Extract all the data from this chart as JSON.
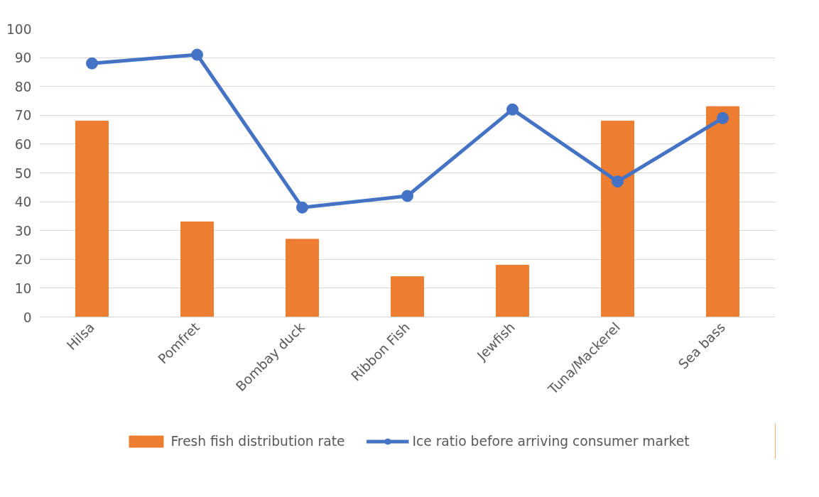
{
  "chart_data": {
    "type": "bar",
    "categories": [
      "Hilsa",
      "Pomfret",
      "Bombay duck",
      "Ribbon Fish",
      "Jewfish",
      "Tuna/Mackerel",
      "Sea bass"
    ],
    "series": [
      {
        "name": "Fresh fish distribution rate",
        "color": "#ed7d31",
        "values": [
          68,
          33,
          27,
          14,
          18,
          68,
          73
        ]
      },
      {
        "name": "Ice ratio before arriving consumer market",
        "type": "line",
        "color": "#4472c4",
        "values": [
          88,
          91,
          38,
          42,
          72,
          47,
          69
        ]
      }
    ],
    "ylim": [
      0,
      100
    ],
    "yticks": [
      0,
      10,
      20,
      30,
      40,
      50,
      60,
      70,
      80,
      90,
      100
    ],
    "grid": "y",
    "legend": "bottom",
    "marker": "circle",
    "line_style": "solid"
  }
}
